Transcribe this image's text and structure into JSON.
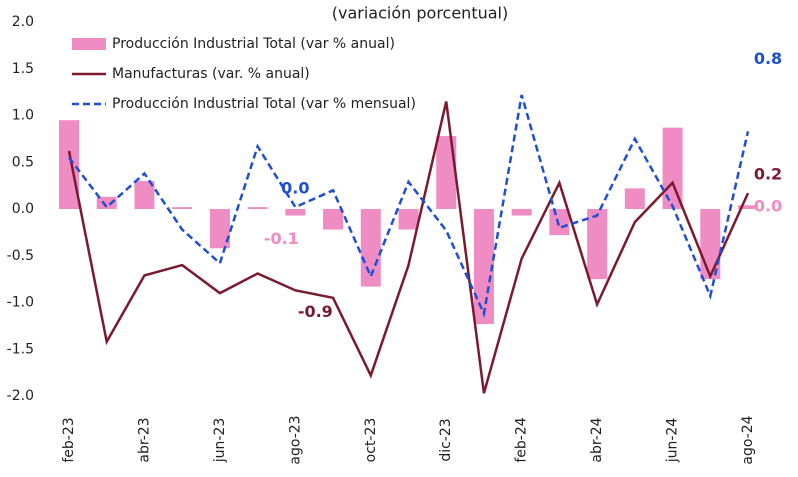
{
  "chart_data": {
    "type": "combo",
    "title": "(variación porcentual)",
    "categories": [
      "feb-23",
      null,
      "abr-23",
      null,
      "jun-23",
      null,
      "ago-23",
      null,
      "oct-23",
      null,
      "dic-23",
      null,
      "feb-24",
      null,
      "abr-24",
      null,
      "jun-24",
      null,
      "ago-24"
    ],
    "ylim": [
      -2,
      2
    ],
    "yticks": [
      {
        "value": 2,
        "label": "2.0"
      },
      {
        "value": 1.5,
        "label": "1.5"
      },
      {
        "value": 1,
        "label": "1.0"
      },
      {
        "value": 0.5,
        "label": "0.5"
      },
      {
        "value": 0,
        "label": "0.0"
      },
      {
        "value": -0.5,
        "label": "-0.5"
      },
      {
        "value": -1,
        "label": "-1.0"
      },
      {
        "value": -1.5,
        "label": "-1.5"
      },
      {
        "value": -2,
        "label": "-2.0"
      }
    ],
    "series": [
      {
        "name": "Producción Industrial Total (var % anual)",
        "type": "bar",
        "color": "#ef8cc4",
        "values": [
          0.95,
          0.13,
          0.3,
          0.02,
          -0.42,
          0.02,
          -0.07,
          -0.22,
          -0.83,
          -0.22,
          0.78,
          -1.23,
          -0.07,
          -0.28,
          -0.75,
          0.22,
          0.87,
          -0.75,
          0.04
        ],
        "value_labels": [
          null,
          null,
          null,
          null,
          null,
          null,
          "-0.1",
          null,
          null,
          null,
          null,
          null,
          null,
          null,
          null,
          null,
          null,
          null,
          "0.0"
        ]
      },
      {
        "name": "Manufacturas (var. % anual)",
        "type": "line",
        "color": "#7b1a2e",
        "values": [
          0.62,
          -1.42,
          -0.71,
          -0.6,
          -0.9,
          -0.69,
          -0.87,
          -0.95,
          -1.78,
          -0.6,
          1.15,
          -1.97,
          -0.53,
          0.28,
          -1.02,
          -0.14,
          0.28,
          -0.72,
          0.17
        ],
        "value_labels": [
          null,
          null,
          null,
          null,
          null,
          null,
          "-0.9",
          null,
          null,
          null,
          null,
          null,
          null,
          null,
          null,
          null,
          null,
          null,
          "0.2"
        ]
      },
      {
        "name": "Producción Industrial Total (var % mensual)",
        "type": "line",
        "dashed": true,
        "color": "#1f4fd1",
        "values": [
          0.55,
          0.02,
          0.38,
          -0.22,
          -0.58,
          0.67,
          0.02,
          0.2,
          -0.72,
          0.29,
          -0.23,
          -1.12,
          1.22,
          -0.2,
          -0.07,
          0.75,
          0.03,
          -0.93,
          0.83
        ],
        "value_labels": [
          null,
          null,
          null,
          null,
          null,
          null,
          "0.0",
          null,
          null,
          null,
          null,
          null,
          null,
          null,
          null,
          null,
          null,
          null,
          "0.8"
        ]
      }
    ]
  }
}
